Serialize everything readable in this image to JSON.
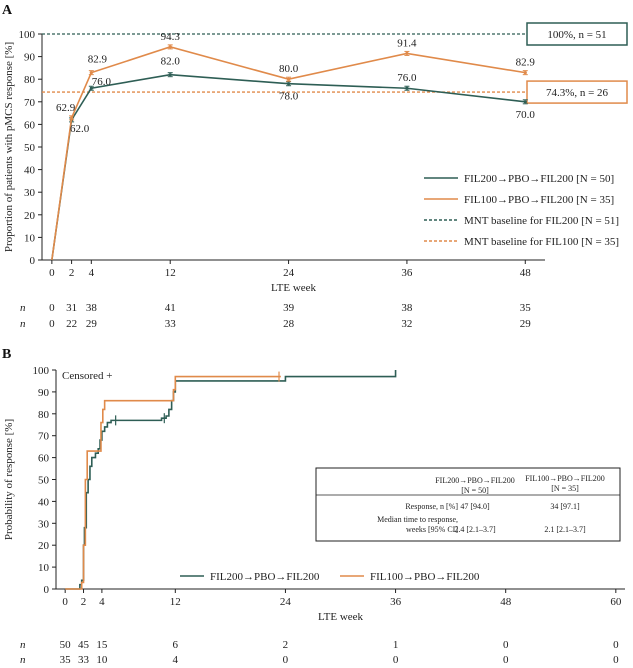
{
  "colors": {
    "fil200": "#2e5e55",
    "fil100": "#e08a4a",
    "axis": "#222222"
  },
  "chart_data": [
    {
      "panel": "A",
      "type": "line",
      "ylabel": "Proportion of patients with pMCS response [%]",
      "xlabel": "LTE week",
      "xlim": [
        -1,
        50
      ],
      "ylim": [
        0,
        100
      ],
      "x_ticks": [
        0,
        2,
        4,
        12,
        24,
        36,
        48
      ],
      "y_ticks": [
        0,
        10,
        20,
        30,
        40,
        50,
        60,
        70,
        80,
        90,
        100
      ],
      "series": [
        {
          "name": "FIL200→PBO→FIL200 [N = 50]",
          "color_key": "fil200",
          "x": [
            0,
            2,
            4,
            12,
            24,
            36,
            48
          ],
          "y": [
            0,
            62.0,
            76.0,
            82.0,
            78.0,
            76.0,
            70.0
          ],
          "labels": [
            "",
            "62.0",
            "76.0",
            "82.0",
            "78.0",
            "76.0",
            "70.0"
          ]
        },
        {
          "name": "FIL100→PBO→FIL200 [N = 35]",
          "color_key": "fil100",
          "x": [
            0,
            2,
            4,
            12,
            24,
            36,
            48
          ],
          "y": [
            0,
            62.9,
            82.9,
            94.3,
            80.0,
            91.4,
            82.9
          ],
          "labels": [
            "",
            "62.9",
            "82.9",
            "94.3",
            "80.0",
            "91.4",
            "82.9"
          ]
        }
      ],
      "baselines": [
        {
          "name": "MNT baseline for FIL200 [N = 51]",
          "value": 100,
          "color_key": "fil200",
          "callout": "100%, n = 51"
        },
        {
          "name": "MNT baseline for FIL100 [N = 35]",
          "value": 74.3,
          "color_key": "fil100",
          "callout": "74.3%, n = 26"
        }
      ],
      "risk_table": {
        "label": "n",
        "x": [
          0,
          2,
          4,
          12,
          24,
          36,
          48
        ],
        "fil200": [
          "0",
          "31",
          "38",
          "41",
          "39",
          "38",
          "35"
        ],
        "fil100": [
          "0",
          "22",
          "29",
          "33",
          "28",
          "32",
          "29"
        ]
      }
    },
    {
      "panel": "B",
      "type": "line",
      "ylabel": "Probability of response [%]",
      "xlabel": "LTE week",
      "xlim": [
        -1,
        61
      ],
      "ylim": [
        0,
        100
      ],
      "x_ticks": [
        0,
        2,
        4,
        12,
        24,
        36,
        48,
        60
      ],
      "y_ticks": [
        0,
        10,
        20,
        30,
        40,
        50,
        60,
        70,
        80,
        90,
        100
      ],
      "censor_note": "Censored +",
      "series": [
        {
          "name": "FIL200→PBO→FIL200",
          "color_key": "fil200",
          "steps": [
            [
              0,
              0
            ],
            [
              1.3,
              0
            ],
            [
              1.6,
              2
            ],
            [
              1.8,
              4
            ],
            [
              2.0,
              20
            ],
            [
              2.1,
              28
            ],
            [
              2.3,
              44
            ],
            [
              2.5,
              50
            ],
            [
              2.7,
              56
            ],
            [
              2.9,
              60
            ],
            [
              3.3,
              62
            ],
            [
              3.6,
              64
            ],
            [
              3.8,
              68
            ],
            [
              4.0,
              72
            ],
            [
              4.3,
              74
            ],
            [
              4.6,
              76
            ],
            [
              5.0,
              77
            ],
            [
              10.5,
              78
            ],
            [
              11.0,
              79
            ],
            [
              11.3,
              82
            ],
            [
              11.6,
              86
            ],
            [
              11.8,
              90
            ],
            [
              12.0,
              95
            ],
            [
              24.0,
              97
            ],
            [
              36.0,
              100
            ]
          ],
          "end_x": 36,
          "censored": [
            [
              5.5,
              77
            ],
            [
              10.8,
              78
            ]
          ]
        },
        {
          "name": "FIL100→PBO→FIL200",
          "color_key": "fil100",
          "steps": [
            [
              0,
              0
            ],
            [
              1.6,
              0
            ],
            [
              1.8,
              3
            ],
            [
              2.0,
              20
            ],
            [
              2.2,
              50
            ],
            [
              2.4,
              63
            ],
            [
              3.6,
              63
            ],
            [
              3.9,
              76
            ],
            [
              4.1,
              82
            ],
            [
              4.3,
              86
            ],
            [
              11.7,
              86
            ],
            [
              11.8,
              91
            ],
            [
              12.0,
              97
            ]
          ],
          "end_x": 23.5,
          "censored": [
            [
              23.3,
              97
            ]
          ]
        }
      ],
      "summary_table": {
        "columns": [
          "",
          "FIL200→PBO→FIL200 [N = 50]",
          "FIL100→PBO→FIL200 [N = 35]"
        ],
        "rows": [
          [
            "Response, n [%]",
            "47 [94.0]",
            "34 [97.1]"
          ],
          [
            "Median time to response, weeks [95% CI]",
            "2.4 [2.1–3.7]",
            "2.1 [2.1–3.7]"
          ]
        ]
      },
      "risk_table": {
        "label": "n",
        "x": [
          0,
          2,
          4,
          12,
          24,
          36,
          48,
          60
        ],
        "fil200": [
          "50",
          "45",
          "15",
          "6",
          "2",
          "1",
          "0",
          "0"
        ],
        "fil100": [
          "35",
          "33",
          "10",
          "4",
          "0",
          "0",
          "0",
          "0"
        ]
      }
    }
  ]
}
